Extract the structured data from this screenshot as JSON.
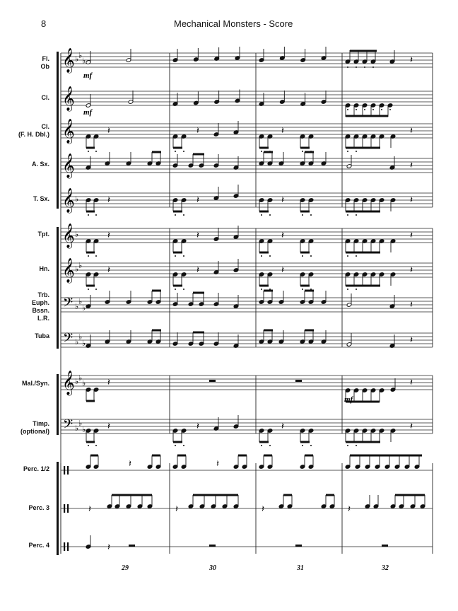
{
  "page": {
    "number": "8",
    "title": "Mechanical Monsters - Score"
  },
  "instruments": [
    {
      "id": "fl-ob",
      "lines": [
        "Fl.",
        "Ob"
      ],
      "clef": "treble",
      "key": "3b"
    },
    {
      "id": "cl",
      "lines": [
        "Cl."
      ],
      "clef": "treble",
      "key": "0"
    },
    {
      "id": "cl-fh",
      "lines": [
        "Cl.",
        "(F. H. Dbl.)"
      ],
      "clef": "treble",
      "key": "0"
    },
    {
      "id": "asx",
      "lines": [
        "A. Sx."
      ],
      "clef": "treble",
      "key": "0"
    },
    {
      "id": "tsx",
      "lines": [
        "T. Sx."
      ],
      "clef": "treble",
      "key": "1b"
    },
    {
      "id": "tpt",
      "lines": [
        "Tpt."
      ],
      "clef": "treble",
      "key": "1b"
    },
    {
      "id": "hn",
      "lines": [
        "Hn."
      ],
      "clef": "treble",
      "key": "2b"
    },
    {
      "id": "trb",
      "lines": [
        "Trb.",
        "Euph.",
        "Bssn.",
        "L.R."
      ],
      "clef": "bass",
      "key": "3b"
    },
    {
      "id": "tuba",
      "lines": [
        "Tuba"
      ],
      "clef": "bass",
      "key": "3b"
    },
    {
      "id": "mal",
      "lines": [
        "Mal./Syn."
      ],
      "clef": "treble",
      "key": "3b"
    },
    {
      "id": "timp",
      "lines": [
        "Timp.",
        "(optional)"
      ],
      "clef": "bass",
      "key": "3b"
    },
    {
      "id": "perc12",
      "lines": [
        "Perc. 1/2"
      ],
      "clef": "perc",
      "key": "0"
    },
    {
      "id": "perc3",
      "lines": [
        "Perc. 3"
      ],
      "clef": "perc",
      "key": "0"
    },
    {
      "id": "perc4",
      "lines": [
        "Perc. 4"
      ],
      "clef": "perc",
      "key": "0"
    }
  ],
  "measure_numbers": [
    "29",
    "30",
    "31",
    "32"
  ],
  "dynamics": [
    {
      "staff": "fl-ob",
      "measure": 0,
      "text": "mf"
    },
    {
      "staff": "cl",
      "measure": 0,
      "text": "mf"
    },
    {
      "staff": "mal",
      "measure": 3,
      "text": "mf"
    }
  ]
}
